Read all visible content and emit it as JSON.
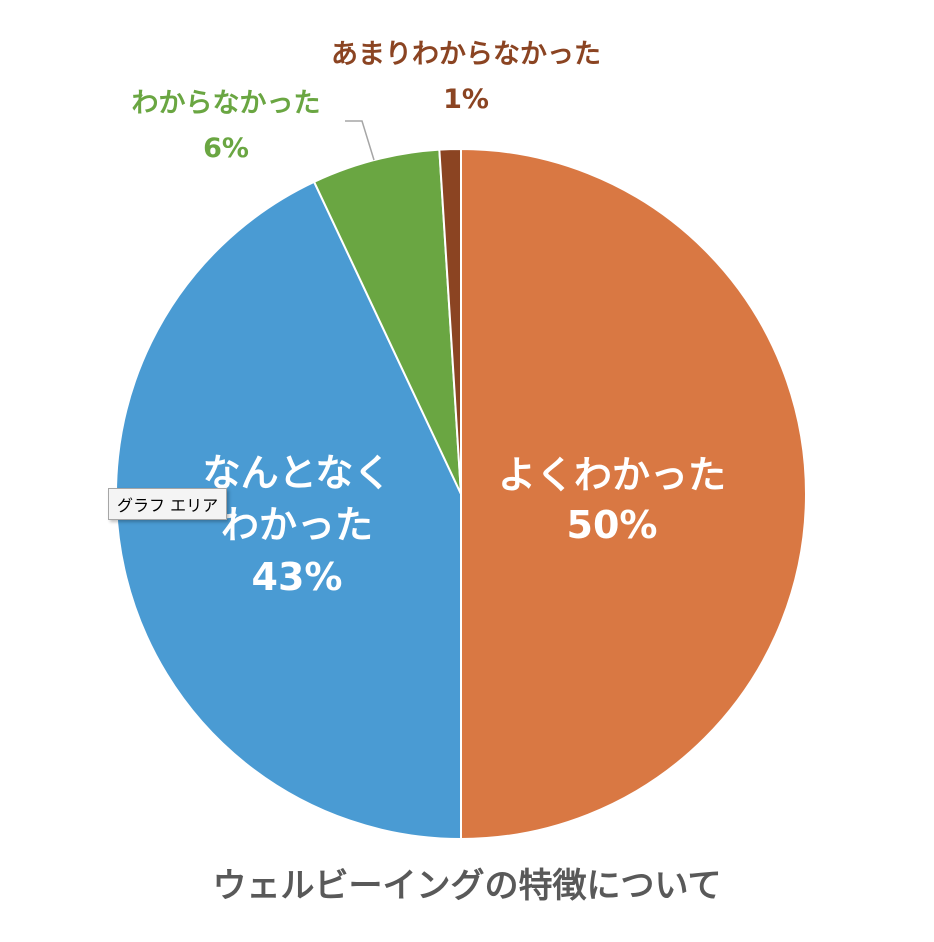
{
  "chart_data": {
    "type": "pie",
    "title": "ウェルビーイングの特徴について",
    "slices": [
      {
        "label": [
          "よくわかった"
        ],
        "value": 50,
        "value_label": "50%",
        "color": "#d97843"
      },
      {
        "label": [
          "なんとなく",
          "わかった"
        ],
        "value": 43,
        "value_label": "43%",
        "color": "#4a9bd3"
      },
      {
        "label": [
          "わからなかった"
        ],
        "value": 6,
        "value_label": "6%",
        "color": "#6aa642"
      },
      {
        "label": [
          "あまりわからなかった"
        ],
        "value": 1,
        "value_label": "1%",
        "color": "#8b4422"
      }
    ],
    "start": "12 o'clock",
    "direction": "clockwise"
  },
  "tooltip": "グラフ エリア"
}
